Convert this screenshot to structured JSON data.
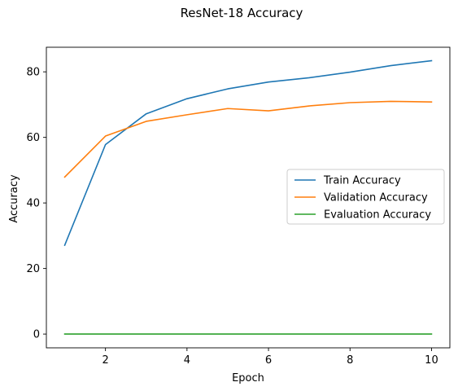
{
  "chart_data": {
    "type": "line",
    "title": "ResNet-18 Accuracy",
    "xlabel": "Epoch",
    "ylabel": "Accuracy",
    "x": [
      1,
      2,
      3,
      4,
      5,
      6,
      7,
      8,
      9,
      10
    ],
    "xlim": [
      0.55,
      10.45
    ],
    "ylim": [
      -4.2,
      87.5
    ],
    "xticks": [
      2,
      4,
      6,
      8,
      10
    ],
    "yticks": [
      0,
      20,
      40,
      60,
      80
    ],
    "grid": false,
    "legend_position": "center-right",
    "series": [
      {
        "name": "Train Accuracy",
        "color": "#1f77b4",
        "values": [
          27.1,
          57.8,
          67.2,
          71.8,
          74.8,
          76.9,
          78.2,
          79.9,
          81.9,
          83.4
        ]
      },
      {
        "name": "Validation Accuracy",
        "color": "#ff7f0e",
        "values": [
          47.9,
          60.4,
          64.9,
          66.9,
          68.8,
          68.1,
          69.6,
          70.6,
          71.0,
          70.8
        ]
      },
      {
        "name": "Evaluation Accuracy",
        "color": "#2ca02c",
        "values": [
          0,
          0,
          0,
          0,
          0,
          0,
          0,
          0,
          0,
          0
        ]
      }
    ]
  }
}
